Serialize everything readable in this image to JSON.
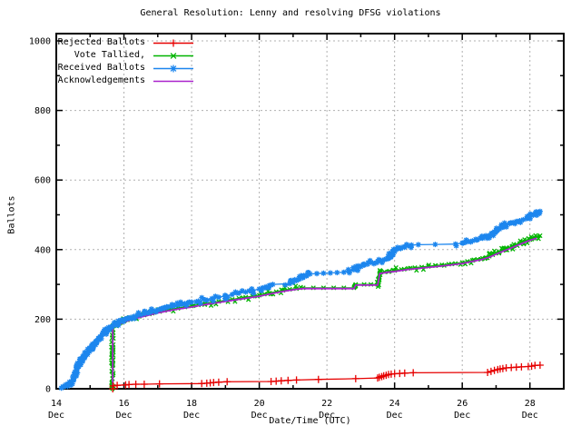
{
  "chart_data": {
    "type": "line",
    "title": "General Resolution: Lenny and resolving DFSG violations",
    "xlabel": "Date/Time (UTC)",
    "ylabel": "Ballots",
    "xlim": [
      14,
      29
    ],
    "ylim": [
      0,
      1000
    ],
    "x_tick_month": "Dec",
    "x_major_ticks": [
      {
        "day": 14,
        "label": "14"
      },
      {
        "day": 16,
        "label": "16"
      },
      {
        "day": 18,
        "label": "18"
      },
      {
        "day": 20,
        "label": "20"
      },
      {
        "day": 22,
        "label": "22"
      },
      {
        "day": 24,
        "label": "24"
      },
      {
        "day": 26,
        "label": "26"
      },
      {
        "day": 28,
        "label": "28"
      }
    ],
    "x_minor_days": [
      15,
      17,
      19,
      21,
      23,
      25,
      27
    ],
    "y_major_ticks": [
      0,
      200,
      400,
      600,
      800,
      1000
    ],
    "y_minor_ticks": [
      100,
      300,
      500,
      700,
      900
    ],
    "grid": true,
    "grid_color": "#b0b0b0",
    "axis_color": "#000000",
    "background": "#ffffff",
    "legend_position": "top-left",
    "series": [
      {
        "name": "Rejected Ballots",
        "color": "#e60000",
        "marker": "plus",
        "marker_size": 4,
        "marker_density": 0,
        "points": [
          [
            15.67,
            0
          ],
          [
            15.68,
            8
          ],
          [
            15.8,
            10
          ],
          [
            16.05,
            11
          ],
          [
            16.15,
            12
          ],
          [
            16.35,
            13
          ],
          [
            16.6,
            13
          ],
          [
            17.05,
            14
          ],
          [
            18.3,
            15
          ],
          [
            18.45,
            16
          ],
          [
            18.55,
            17
          ],
          [
            18.65,
            18
          ],
          [
            18.8,
            19
          ],
          [
            19.05,
            20
          ],
          [
            20.35,
            21
          ],
          [
            20.5,
            22
          ],
          [
            20.65,
            23
          ],
          [
            20.85,
            24
          ],
          [
            21.1,
            25
          ],
          [
            21.75,
            27
          ],
          [
            22.85,
            29
          ],
          [
            23.5,
            31
          ],
          [
            23.55,
            33
          ],
          [
            23.62,
            35
          ],
          [
            23.68,
            37
          ],
          [
            23.75,
            39
          ],
          [
            23.82,
            41
          ],
          [
            23.9,
            42
          ],
          [
            24.0,
            43
          ],
          [
            24.15,
            44
          ],
          [
            24.3,
            45
          ],
          [
            24.55,
            46
          ],
          [
            26.75,
            47
          ],
          [
            26.85,
            50
          ],
          [
            26.95,
            53
          ],
          [
            27.05,
            55
          ],
          [
            27.12,
            57
          ],
          [
            27.2,
            58
          ],
          [
            27.3,
            60
          ],
          [
            27.45,
            61
          ],
          [
            27.6,
            62
          ],
          [
            27.75,
            63
          ],
          [
            27.95,
            64
          ],
          [
            28.05,
            65
          ],
          [
            28.15,
            67
          ],
          [
            28.3,
            68
          ]
        ]
      },
      {
        "name": "Vote Tallied,",
        "color": "#00b400",
        "marker": "cross",
        "marker_size": 3,
        "marker_density": 0.45,
        "points": [
          [
            15.66,
            0
          ],
          [
            15.66,
            178
          ],
          [
            15.7,
            181
          ],
          [
            15.8,
            186
          ],
          [
            15.9,
            190
          ],
          [
            16.0,
            194
          ],
          [
            16.1,
            198
          ],
          [
            16.2,
            201
          ],
          [
            16.3,
            204
          ],
          [
            16.45,
            208
          ],
          [
            16.6,
            212
          ],
          [
            16.75,
            215
          ],
          [
            16.9,
            219
          ],
          [
            17.05,
            222
          ],
          [
            17.2,
            225
          ],
          [
            17.4,
            229
          ],
          [
            17.6,
            232
          ],
          [
            17.8,
            235
          ],
          [
            18.0,
            238
          ],
          [
            18.2,
            241
          ],
          [
            18.4,
            245
          ],
          [
            18.6,
            248
          ],
          [
            18.8,
            251
          ],
          [
            19.0,
            254
          ],
          [
            19.2,
            257
          ],
          [
            19.4,
            260
          ],
          [
            19.6,
            263
          ],
          [
            19.8,
            266
          ],
          [
            20.0,
            269
          ],
          [
            20.15,
            272
          ],
          [
            20.3,
            275
          ],
          [
            20.5,
            279
          ],
          [
            20.7,
            283
          ],
          [
            20.9,
            286
          ],
          [
            21.1,
            288
          ],
          [
            21.3,
            290
          ],
          [
            21.6,
            290
          ],
          [
            21.9,
            290
          ],
          [
            22.2,
            290
          ],
          [
            22.5,
            290
          ],
          [
            22.8,
            290
          ],
          [
            22.85,
            300
          ],
          [
            23.1,
            300
          ],
          [
            23.3,
            300
          ],
          [
            23.5,
            300
          ],
          [
            23.56,
            333
          ],
          [
            23.7,
            336
          ],
          [
            23.85,
            338
          ],
          [
            24.0,
            340
          ],
          [
            24.2,
            343
          ],
          [
            24.4,
            346
          ],
          [
            24.6,
            348
          ],
          [
            24.8,
            350
          ],
          [
            25.0,
            352
          ],
          [
            25.2,
            354
          ],
          [
            25.4,
            356
          ],
          [
            25.6,
            358
          ],
          [
            25.8,
            360
          ],
          [
            26.0,
            363
          ],
          [
            26.15,
            366
          ],
          [
            26.3,
            369
          ],
          [
            26.45,
            372
          ],
          [
            26.6,
            375
          ],
          [
            26.7,
            377
          ],
          [
            26.8,
            381
          ],
          [
            26.9,
            385
          ],
          [
            27.0,
            390
          ],
          [
            27.1,
            394
          ],
          [
            27.2,
            398
          ],
          [
            27.3,
            402
          ],
          [
            27.4,
            406
          ],
          [
            27.5,
            410
          ],
          [
            27.6,
            414
          ],
          [
            27.7,
            418
          ],
          [
            27.8,
            422
          ],
          [
            27.9,
            426
          ],
          [
            28.0,
            429
          ],
          [
            28.1,
            433
          ],
          [
            28.2,
            437
          ],
          [
            28.3,
            440
          ]
        ]
      },
      {
        "name": "Received Ballots",
        "color": "#1c86ee",
        "marker": "asterisk",
        "marker_size": 3,
        "marker_density": 0.45,
        "points": [
          [
            14.15,
            2
          ],
          [
            14.2,
            5
          ],
          [
            14.25,
            8
          ],
          [
            14.3,
            10
          ],
          [
            14.35,
            13
          ],
          [
            14.4,
            16
          ],
          [
            14.45,
            20
          ],
          [
            14.5,
            28
          ],
          [
            14.55,
            40
          ],
          [
            14.6,
            55
          ],
          [
            14.65,
            68
          ],
          [
            14.7,
            78
          ],
          [
            14.75,
            85
          ],
          [
            14.8,
            92
          ],
          [
            14.85,
            98
          ],
          [
            14.9,
            104
          ],
          [
            14.95,
            109
          ],
          [
            15.0,
            114
          ],
          [
            15.05,
            119
          ],
          [
            15.1,
            125
          ],
          [
            15.15,
            131
          ],
          [
            15.2,
            138
          ],
          [
            15.25,
            144
          ],
          [
            15.3,
            150
          ],
          [
            15.35,
            155
          ],
          [
            15.4,
            160
          ],
          [
            15.45,
            165
          ],
          [
            15.5,
            169
          ],
          [
            15.55,
            173
          ],
          [
            15.6,
            176
          ],
          [
            15.65,
            179
          ],
          [
            15.7,
            182
          ],
          [
            15.75,
            185
          ],
          [
            15.8,
            188
          ],
          [
            15.85,
            191
          ],
          [
            15.9,
            194
          ],
          [
            15.95,
            196
          ],
          [
            16.0,
            198
          ],
          [
            16.1,
            202
          ],
          [
            16.2,
            205
          ],
          [
            16.3,
            208
          ],
          [
            16.4,
            211
          ],
          [
            16.5,
            213
          ],
          [
            16.6,
            216
          ],
          [
            16.7,
            218
          ],
          [
            16.8,
            221
          ],
          [
            16.9,
            224
          ],
          [
            17.0,
            227
          ],
          [
            17.1,
            230
          ],
          [
            17.2,
            232
          ],
          [
            17.3,
            235
          ],
          [
            17.4,
            237
          ],
          [
            17.5,
            239
          ],
          [
            17.6,
            241
          ],
          [
            17.7,
            243
          ],
          [
            17.8,
            245
          ],
          [
            17.9,
            247
          ],
          [
            18.0,
            249
          ],
          [
            18.2,
            252
          ],
          [
            18.4,
            256
          ],
          [
            18.6,
            259
          ],
          [
            18.8,
            263
          ],
          [
            19.0,
            267
          ],
          [
            19.2,
            271
          ],
          [
            19.4,
            275
          ],
          [
            19.6,
            278
          ],
          [
            19.8,
            282
          ],
          [
            20.0,
            287
          ],
          [
            20.1,
            290
          ],
          [
            20.2,
            293
          ],
          [
            20.3,
            297
          ],
          [
            20.4,
            300
          ],
          [
            20.9,
            302
          ],
          [
            21.0,
            306
          ],
          [
            21.1,
            311
          ],
          [
            21.2,
            316
          ],
          [
            21.3,
            321
          ],
          [
            21.4,
            326
          ],
          [
            21.5,
            330
          ],
          [
            21.7,
            331
          ],
          [
            21.9,
            332
          ],
          [
            22.1,
            333
          ],
          [
            22.3,
            334
          ],
          [
            22.5,
            335
          ],
          [
            22.65,
            337
          ],
          [
            22.8,
            342
          ],
          [
            22.9,
            347
          ],
          [
            23.0,
            351
          ],
          [
            23.1,
            355
          ],
          [
            23.2,
            358
          ],
          [
            23.35,
            362
          ],
          [
            23.5,
            366
          ],
          [
            23.6,
            369
          ],
          [
            23.7,
            371
          ],
          [
            23.8,
            374
          ],
          [
            23.85,
            378
          ],
          [
            23.9,
            386
          ],
          [
            23.95,
            394
          ],
          [
            24.0,
            399
          ],
          [
            24.1,
            403
          ],
          [
            24.2,
            406
          ],
          [
            24.3,
            409
          ],
          [
            24.4,
            411
          ],
          [
            24.5,
            413
          ],
          [
            24.7,
            414
          ],
          [
            25.2,
            415
          ],
          [
            25.8,
            416
          ],
          [
            26.0,
            419
          ],
          [
            26.1,
            421
          ],
          [
            26.2,
            423
          ],
          [
            26.3,
            425
          ],
          [
            26.45,
            429
          ],
          [
            26.6,
            433
          ],
          [
            26.7,
            436
          ],
          [
            26.8,
            441
          ],
          [
            26.9,
            447
          ],
          [
            27.0,
            453
          ],
          [
            27.1,
            459
          ],
          [
            27.2,
            465
          ],
          [
            27.3,
            471
          ],
          [
            27.4,
            475
          ],
          [
            27.5,
            478
          ],
          [
            27.6,
            481
          ],
          [
            27.7,
            483
          ],
          [
            27.8,
            486
          ],
          [
            27.9,
            489
          ],
          [
            28.0,
            494
          ],
          [
            28.1,
            499
          ],
          [
            28.15,
            502
          ],
          [
            28.2,
            505
          ],
          [
            28.25,
            507
          ],
          [
            28.3,
            510
          ]
        ]
      },
      {
        "name": "Acknowledgements",
        "color": "#aa22cc",
        "marker": "none",
        "marker_size": 0,
        "marker_density": 0,
        "points": [
          [
            15.67,
            0
          ],
          [
            15.67,
            176
          ],
          [
            15.8,
            183
          ],
          [
            16.0,
            191
          ],
          [
            16.2,
            198
          ],
          [
            16.45,
            205
          ],
          [
            16.7,
            211
          ],
          [
            17.0,
            218
          ],
          [
            17.3,
            224
          ],
          [
            17.6,
            229
          ],
          [
            18.0,
            235
          ],
          [
            18.4,
            242
          ],
          [
            18.8,
            248
          ],
          [
            19.2,
            254
          ],
          [
            19.6,
            260
          ],
          [
            20.0,
            266
          ],
          [
            20.3,
            272
          ],
          [
            20.6,
            278
          ],
          [
            20.9,
            283
          ],
          [
            21.1,
            286
          ],
          [
            21.3,
            288
          ],
          [
            22.0,
            288
          ],
          [
            22.8,
            288
          ],
          [
            22.85,
            298
          ],
          [
            23.5,
            298
          ],
          [
            23.56,
            331
          ],
          [
            23.8,
            335
          ],
          [
            24.0,
            337
          ],
          [
            24.4,
            343
          ],
          [
            24.8,
            347
          ],
          [
            25.2,
            351
          ],
          [
            25.6,
            355
          ],
          [
            26.0,
            360
          ],
          [
            26.3,
            366
          ],
          [
            26.6,
            372
          ],
          [
            26.8,
            378
          ],
          [
            27.0,
            387
          ],
          [
            27.2,
            395
          ],
          [
            27.4,
            403
          ],
          [
            27.6,
            411
          ],
          [
            27.8,
            419
          ],
          [
            27.95,
            425
          ],
          [
            28.1,
            430
          ],
          [
            28.2,
            433
          ]
        ]
      }
    ]
  }
}
